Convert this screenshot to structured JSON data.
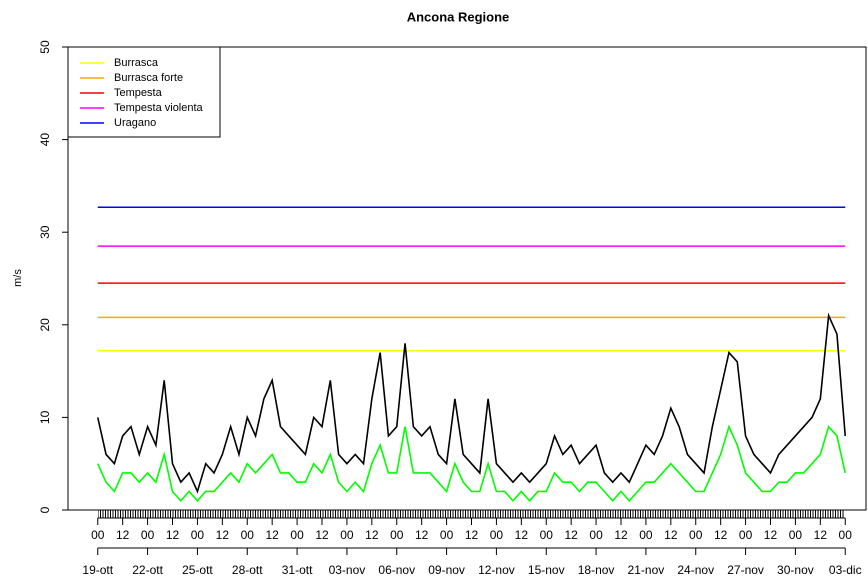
{
  "chart_data": {
    "type": "line",
    "title": "Ancona Regione",
    "y_label": "m/s",
    "ylim": [
      0,
      50
    ],
    "yticks": [
      0,
      10,
      20,
      30,
      40,
      50
    ],
    "xlim": [
      -43,
      1110
    ],
    "xticks": [
      {
        "value": 0,
        "label": "00"
      },
      {
        "value": 36,
        "label": "12"
      },
      {
        "value": 72,
        "label": "00"
      },
      {
        "value": 108,
        "label": "12"
      },
      {
        "value": 144,
        "label": "00"
      },
      {
        "value": 180,
        "label": "12"
      },
      {
        "value": 216,
        "label": "00"
      },
      {
        "value": 252,
        "label": "12"
      },
      {
        "value": 288,
        "label": "00"
      },
      {
        "value": 324,
        "label": "12"
      },
      {
        "value": 360,
        "label": "00"
      },
      {
        "value": 396,
        "label": "12"
      },
      {
        "value": 432,
        "label": "00"
      },
      {
        "value": 468,
        "label": "12"
      },
      {
        "value": 504,
        "label": "00"
      },
      {
        "value": 540,
        "label": "12"
      },
      {
        "value": 576,
        "label": "00"
      },
      {
        "value": 612,
        "label": "12"
      },
      {
        "value": 648,
        "label": "00"
      },
      {
        "value": 684,
        "label": "12"
      },
      {
        "value": 720,
        "label": "00"
      },
      {
        "value": 756,
        "label": "12"
      },
      {
        "value": 792,
        "label": "00"
      },
      {
        "value": 828,
        "label": "12"
      },
      {
        "value": 864,
        "label": "00"
      },
      {
        "value": 900,
        "label": "12"
      },
      {
        "value": 936,
        "label": "00"
      },
      {
        "value": 972,
        "label": "12"
      },
      {
        "value": 1008,
        "label": "00"
      },
      {
        "value": 1044,
        "label": "12"
      },
      {
        "value": 1080,
        "label": "00"
      }
    ],
    "date_ticks": [
      {
        "value": 0,
        "label": "19-ott"
      },
      {
        "value": 72,
        "label": "22-ott"
      },
      {
        "value": 144,
        "label": "25-ott"
      },
      {
        "value": 216,
        "label": "28-ott"
      },
      {
        "value": 288,
        "label": "31-ott"
      },
      {
        "value": 360,
        "label": "03-nov"
      },
      {
        "value": 432,
        "label": "06-nov"
      },
      {
        "value": 504,
        "label": "09-nov"
      },
      {
        "value": 576,
        "label": "12-nov"
      },
      {
        "value": 648,
        "label": "15-nov"
      },
      {
        "value": 720,
        "label": "18-nov"
      },
      {
        "value": 792,
        "label": "21-nov"
      },
      {
        "value": 864,
        "label": "24-nov"
      },
      {
        "value": 936,
        "label": "27-nov"
      },
      {
        "value": 1008,
        "label": "30-nov"
      },
      {
        "value": 1080,
        "label": "03-dic"
      }
    ],
    "x": [
      0,
      12,
      24,
      36,
      48,
      60,
      72,
      84,
      96,
      108,
      120,
      132,
      144,
      156,
      168,
      180,
      192,
      204,
      216,
      228,
      240,
      252,
      264,
      276,
      288,
      300,
      312,
      324,
      336,
      348,
      360,
      372,
      384,
      396,
      408,
      420,
      432,
      444,
      456,
      468,
      480,
      492,
      504,
      516,
      528,
      540,
      552,
      564,
      576,
      588,
      600,
      612,
      624,
      636,
      648,
      660,
      672,
      684,
      696,
      708,
      720,
      732,
      744,
      756,
      768,
      780,
      792,
      804,
      816,
      828,
      840,
      852,
      864,
      876,
      888,
      900,
      912,
      924,
      936,
      948,
      960,
      972,
      984,
      996,
      1008,
      1020,
      1032,
      1044,
      1056,
      1068,
      1080
    ],
    "series": [
      {
        "color": "#000000",
        "values": [
          10,
          6,
          5,
          8,
          9,
          6,
          9,
          7,
          14,
          5,
          3,
          4,
          2,
          5,
          4,
          6,
          9,
          6,
          10,
          8,
          12,
          14,
          9,
          8,
          7,
          6,
          10,
          9,
          14,
          6,
          5,
          6,
          5,
          12,
          17,
          8,
          9,
          18,
          9,
          8,
          9,
          6,
          5,
          12,
          6,
          5,
          4,
          12,
          5,
          4,
          3,
          4,
          3,
          4,
          5,
          8,
          6,
          7,
          5,
          6,
          7,
          4,
          3,
          4,
          3,
          5,
          7,
          6,
          8,
          11,
          9,
          6,
          5,
          4,
          9,
          13,
          17,
          16,
          8,
          6,
          5,
          4,
          6,
          7,
          8,
          9,
          10,
          12,
          21,
          19,
          8
        ]
      },
      {
        "color": "#00ff00",
        "values": [
          5,
          3,
          2,
          4,
          4,
          3,
          4,
          3,
          6,
          2,
          1,
          2,
          1,
          2,
          2,
          3,
          4,
          3,
          5,
          4,
          5,
          6,
          4,
          4,
          3,
          3,
          5,
          4,
          6,
          3,
          2,
          3,
          2,
          5,
          7,
          4,
          4,
          9,
          4,
          4,
          4,
          3,
          2,
          5,
          3,
          2,
          2,
          5,
          2,
          2,
          1,
          2,
          1,
          2,
          2,
          4,
          3,
          3,
          2,
          3,
          3,
          2,
          1,
          2,
          1,
          2,
          3,
          3,
          4,
          5,
          4,
          3,
          2,
          2,
          4,
          6,
          9,
          7,
          4,
          3,
          2,
          2,
          3,
          3,
          4,
          4,
          5,
          6,
          9,
          8,
          4
        ]
      }
    ],
    "reference_lines": [
      {
        "name": "Burrasca",
        "value": 17.2,
        "color": "#ffff00"
      },
      {
        "name": "Burrasca forte",
        "value": 20.8,
        "color": "#ffa500"
      },
      {
        "name": "Tempesta",
        "value": 24.5,
        "color": "#ff0000"
      },
      {
        "name": "Tempesta violenta",
        "value": 28.5,
        "color": "#ff00ff"
      },
      {
        "name": "Uragano",
        "value": 32.7,
        "color": "#0000ff"
      }
    ],
    "legend": "top-left"
  }
}
